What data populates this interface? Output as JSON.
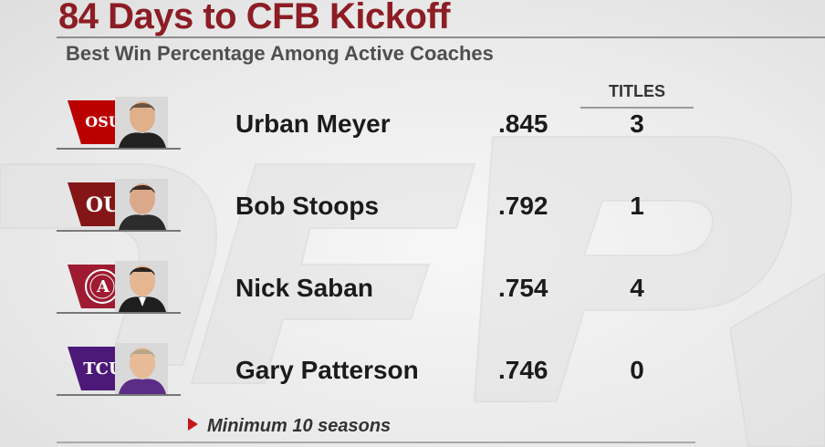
{
  "header": {
    "title": "84 Days to CFB Kickoff",
    "subtitle": "Best Win Percentage Among Active Coaches"
  },
  "table": {
    "titles_header": "TITLES",
    "rows": [
      {
        "logo_text": "OSU",
        "logo_color": "#bb0000",
        "name": "Urban Meyer",
        "pct": ".845",
        "titles": "3"
      },
      {
        "logo_text": "OU",
        "logo_color": "#841617",
        "name": "Bob Stoops",
        "pct": ".792",
        "titles": "1"
      },
      {
        "logo_text": "A",
        "logo_color": "#9e1b32",
        "name": "Nick Saban",
        "pct": ".754",
        "titles": "4"
      },
      {
        "logo_text": "TCU",
        "logo_color": "#4d1979",
        "name": "Gary Patterson",
        "pct": ".746",
        "titles": "0"
      }
    ]
  },
  "footnote": "Minimum 10 seasons",
  "colors": {
    "title": "#8c1d24",
    "accent_arrow": "#c4161c"
  }
}
